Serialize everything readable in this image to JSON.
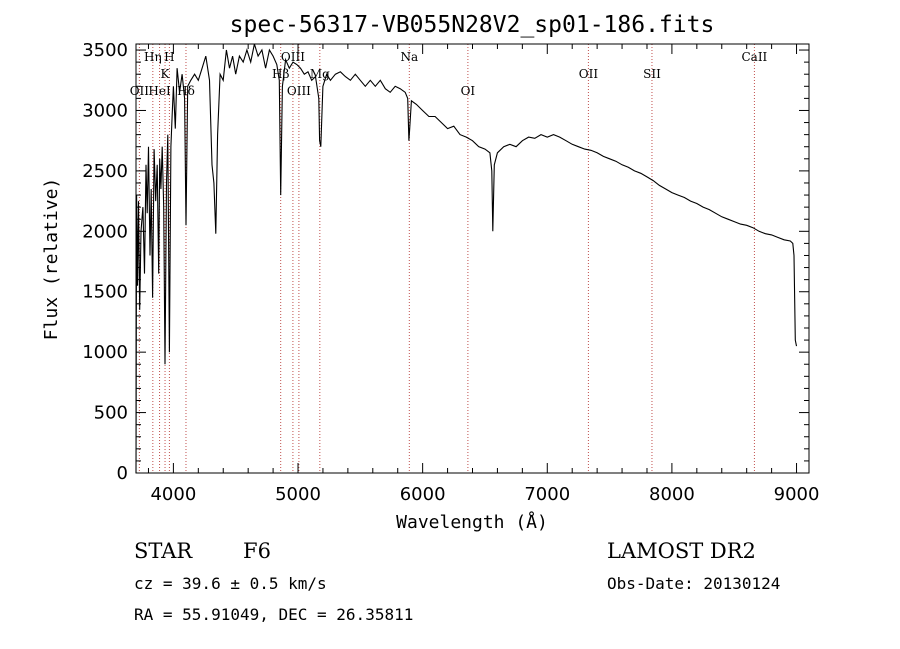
{
  "chart_data": {
    "type": "line",
    "title": "spec-56317-VB055N28V2_sp01-186.fits",
    "xlabel": "Wavelength (Å)",
    "ylabel": "Flux (relative)",
    "xlim": [
      3700,
      9100
    ],
    "ylim": [
      0,
      3550
    ],
    "xticks": [
      4000,
      5000,
      6000,
      7000,
      8000,
      9000
    ],
    "yticks": [
      0,
      500,
      1000,
      1500,
      2000,
      2500,
      3000,
      3500
    ],
    "grid": false,
    "series": [
      {
        "color": "#000000",
        "points": [
          [
            3700,
            0
          ],
          [
            3705,
            2300
          ],
          [
            3712,
            1550
          ],
          [
            3720,
            2250
          ],
          [
            3730,
            1350
          ],
          [
            3740,
            2000
          ],
          [
            3755,
            2200
          ],
          [
            3768,
            1650
          ],
          [
            3780,
            2550
          ],
          [
            3790,
            2150
          ],
          [
            3800,
            2700
          ],
          [
            3812,
            1800
          ],
          [
            3822,
            2350
          ],
          [
            3833,
            1450
          ],
          [
            3845,
            2680
          ],
          [
            3858,
            2250
          ],
          [
            3870,
            2550
          ],
          [
            3882,
            1650
          ],
          [
            3890,
            2600
          ],
          [
            3900,
            2350
          ],
          [
            3910,
            2700
          ],
          [
            3922,
            2200
          ],
          [
            3933,
            900
          ],
          [
            3945,
            2400
          ],
          [
            3955,
            2800
          ],
          [
            3968,
            1000
          ],
          [
            3980,
            2700
          ],
          [
            3990,
            2950
          ],
          [
            4000,
            3200
          ],
          [
            4015,
            2850
          ],
          [
            4030,
            3350
          ],
          [
            4050,
            3150
          ],
          [
            4070,
            3300
          ],
          [
            4090,
            3100
          ],
          [
            4101,
            2050
          ],
          [
            4115,
            3200
          ],
          [
            4140,
            3250
          ],
          [
            4170,
            3300
          ],
          [
            4200,
            3250
          ],
          [
            4230,
            3350
          ],
          [
            4260,
            3450
          ],
          [
            4290,
            3250
          ],
          [
            4310,
            2550
          ],
          [
            4325,
            2400
          ],
          [
            4340,
            1980
          ],
          [
            4355,
            2800
          ],
          [
            4375,
            3300
          ],
          [
            4400,
            3250
          ],
          [
            4425,
            3500
          ],
          [
            4450,
            3350
          ],
          [
            4475,
            3450
          ],
          [
            4500,
            3300
          ],
          [
            4530,
            3450
          ],
          [
            4560,
            3400
          ],
          [
            4590,
            3500
          ],
          [
            4620,
            3400
          ],
          [
            4650,
            3550
          ],
          [
            4680,
            3450
          ],
          [
            4710,
            3500
          ],
          [
            4740,
            3350
          ],
          [
            4770,
            3500
          ],
          [
            4800,
            3450
          ],
          [
            4830,
            3380
          ],
          [
            4850,
            3250
          ],
          [
            4861,
            2300
          ],
          [
            4875,
            3200
          ],
          [
            4900,
            3420
          ],
          [
            4930,
            3350
          ],
          [
            4960,
            3400
          ],
          [
            4990,
            3380
          ],
          [
            5020,
            3350
          ],
          [
            5050,
            3300
          ],
          [
            5080,
            3320
          ],
          [
            5110,
            3250
          ],
          [
            5140,
            3280
          ],
          [
            5167,
            3100
          ],
          [
            5173,
            2750
          ],
          [
            5183,
            2700
          ],
          [
            5200,
            3200
          ],
          [
            5230,
            3300
          ],
          [
            5260,
            3250
          ],
          [
            5300,
            3300
          ],
          [
            5340,
            3320
          ],
          [
            5380,
            3280
          ],
          [
            5420,
            3250
          ],
          [
            5460,
            3300
          ],
          [
            5500,
            3250
          ],
          [
            5540,
            3200
          ],
          [
            5580,
            3250
          ],
          [
            5620,
            3200
          ],
          [
            5660,
            3250
          ],
          [
            5700,
            3180
          ],
          [
            5740,
            3150
          ],
          [
            5780,
            3200
          ],
          [
            5820,
            3180
          ],
          [
            5860,
            3150
          ],
          [
            5880,
            3100
          ],
          [
            5890,
            2750
          ],
          [
            5896,
            2850
          ],
          [
            5910,
            3080
          ],
          [
            5950,
            3050
          ],
          [
            6000,
            3000
          ],
          [
            6050,
            2950
          ],
          [
            6100,
            2950
          ],
          [
            6150,
            2900
          ],
          [
            6200,
            2850
          ],
          [
            6250,
            2870
          ],
          [
            6300,
            2800
          ],
          [
            6350,
            2780
          ],
          [
            6400,
            2750
          ],
          [
            6450,
            2700
          ],
          [
            6500,
            2680
          ],
          [
            6540,
            2650
          ],
          [
            6555,
            2500
          ],
          [
            6563,
            2000
          ],
          [
            6575,
            2550
          ],
          [
            6600,
            2650
          ],
          [
            6650,
            2700
          ],
          [
            6700,
            2720
          ],
          [
            6750,
            2700
          ],
          [
            6800,
            2750
          ],
          [
            6850,
            2780
          ],
          [
            6900,
            2770
          ],
          [
            6950,
            2800
          ],
          [
            7000,
            2780
          ],
          [
            7050,
            2800
          ],
          [
            7100,
            2780
          ],
          [
            7150,
            2750
          ],
          [
            7200,
            2720
          ],
          [
            7250,
            2700
          ],
          [
            7300,
            2680
          ],
          [
            7350,
            2670
          ],
          [
            7400,
            2650
          ],
          [
            7450,
            2620
          ],
          [
            7500,
            2600
          ],
          [
            7550,
            2580
          ],
          [
            7600,
            2550
          ],
          [
            7650,
            2530
          ],
          [
            7700,
            2500
          ],
          [
            7750,
            2480
          ],
          [
            7800,
            2450
          ],
          [
            7850,
            2420
          ],
          [
            7900,
            2380
          ],
          [
            7950,
            2350
          ],
          [
            8000,
            2320
          ],
          [
            8050,
            2300
          ],
          [
            8100,
            2280
          ],
          [
            8150,
            2250
          ],
          [
            8200,
            2230
          ],
          [
            8250,
            2200
          ],
          [
            8300,
            2180
          ],
          [
            8350,
            2150
          ],
          [
            8400,
            2120
          ],
          [
            8450,
            2100
          ],
          [
            8500,
            2080
          ],
          [
            8550,
            2060
          ],
          [
            8600,
            2050
          ],
          [
            8650,
            2030
          ],
          [
            8700,
            2000
          ],
          [
            8750,
            1980
          ],
          [
            8800,
            1970
          ],
          [
            8850,
            1950
          ],
          [
            8900,
            1930
          ],
          [
            8950,
            1920
          ],
          [
            8970,
            1900
          ],
          [
            8980,
            1800
          ],
          [
            8990,
            1100
          ],
          [
            9000,
            1050
          ]
        ]
      }
    ],
    "spectral_lines": [
      {
        "label": "OII",
        "x": 3727,
        "row": 2
      },
      {
        "label": "Hη",
        "x": 3835,
        "row": 0
      },
      {
        "label": "HeI",
        "x": 3889,
        "row": 2
      },
      {
        "label": "K",
        "x": 3933,
        "row": 1
      },
      {
        "label": "H",
        "x": 3968,
        "row": 0
      },
      {
        "label": "Hδ",
        "x": 4101,
        "row": 2
      },
      {
        "label": "Hβ",
        "x": 4861,
        "row": 1
      },
      {
        "label": "OIII",
        "x": 4959,
        "row": 0
      },
      {
        "label": "OIII",
        "x": 5007,
        "row": 2
      },
      {
        "label": "Mg",
        "x": 5175,
        "row": 1
      },
      {
        "label": "Na",
        "x": 5893,
        "row": 0
      },
      {
        "label": "OI",
        "x": 6363,
        "row": 2
      },
      {
        "label": "OII",
        "x": 7330,
        "row": 1
      },
      {
        "label": "SII",
        "x": 7840,
        "row": 1
      },
      {
        "label": "CaII",
        "x": 8662,
        "row": 0
      }
    ]
  },
  "info": {
    "object_type": "STAR",
    "subclass": "F6",
    "survey": "LAMOST DR2",
    "redshift_line": "cz = 39.6 ± 0.5 km/s",
    "obs_date_line": "Obs-Date: 20130124",
    "coords_line": "RA =  55.91049, DEC =  26.35811"
  },
  "colors": {
    "spectrum": "#000000",
    "line_markers": "#c0504d"
  }
}
